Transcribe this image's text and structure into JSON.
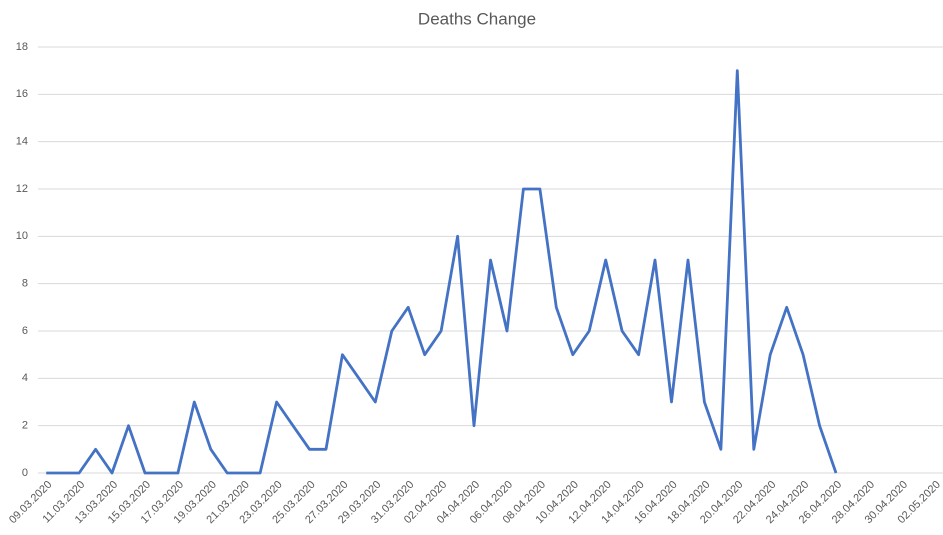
{
  "chart_data": {
    "type": "line",
    "title": "Deaths Change",
    "categories": [
      "09.03.2020",
      null,
      "11.03.2020",
      null,
      "13.03.2020",
      null,
      "15.03.2020",
      null,
      "17.03.2020",
      null,
      "19.03.2020",
      null,
      "21.03.2020",
      null,
      "23.03.2020",
      null,
      "25.03.2020",
      null,
      "27.03.2020",
      null,
      "29.03.2020",
      null,
      "31.03.2020",
      null,
      "02.04.2020",
      null,
      "04.04.2020",
      null,
      "06.04.2020",
      null,
      "08.04.2020",
      null,
      "10.04.2020",
      null,
      "12.04.2020",
      null,
      "14.04.2020",
      null,
      "16.04.2020",
      null,
      "18.04.2020",
      null,
      "20.04.2020",
      null,
      "22.04.2020",
      null,
      "24.04.2020",
      null,
      "26.04.2020",
      null,
      "28.04.2020",
      null,
      "30.04.2020",
      null,
      "02.05.2020"
    ],
    "series": [
      {
        "name": "Deaths Change",
        "color": "#4472c4",
        "values": [
          0,
          0,
          0,
          1,
          0,
          2,
          0,
          0,
          0,
          3,
          1,
          0,
          0,
          0,
          3,
          2,
          1,
          1,
          5,
          4,
          3,
          6,
          7,
          5,
          6,
          10,
          2,
          9,
          6,
          12,
          12,
          7,
          5,
          6,
          9,
          6,
          5,
          9,
          3,
          9,
          3,
          1,
          17,
          1,
          5,
          7,
          5,
          2,
          0,
          null,
          null,
          null,
          null,
          null,
          null
        ]
      }
    ],
    "ylim": [
      0,
      18
    ],
    "yticks": [
      0,
      2,
      4,
      6,
      8,
      10,
      12,
      14,
      16,
      18
    ],
    "grid": true
  }
}
